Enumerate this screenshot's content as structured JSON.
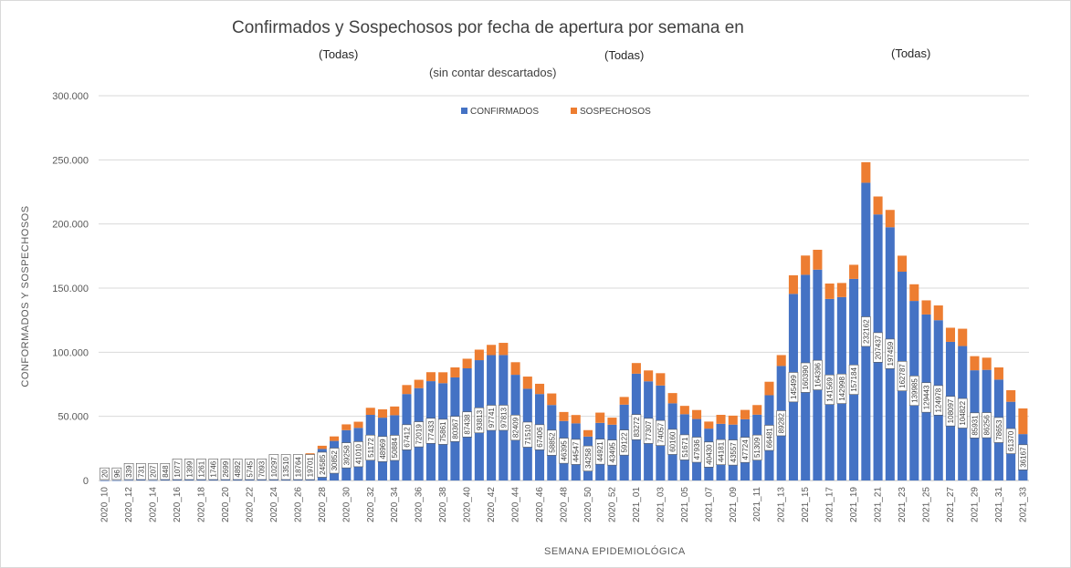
{
  "chart_data": {
    "type": "bar",
    "stacked": true,
    "title": "Confirmados y Sospechosos por fecha de apertura por semana en",
    "filters": [
      "(Todas)",
      "(Todas)",
      "(Todas)"
    ],
    "subtitle": "(sin contar descartados)",
    "ylabel": "CONFORMADOS Y SOSPECHOSOS",
    "xlabel": "SEMANA EPIDEMIOLÓGICA",
    "ylim": [
      0,
      300000
    ],
    "yticks": [
      "0",
      "50.000",
      "100.000",
      "150.000",
      "200.000",
      "250.000",
      "300.000"
    ],
    "grid": true,
    "legend_position": "top",
    "colors": {
      "confirmados": "#4472c4",
      "sospechosos": "#ed7d31"
    },
    "series_names": [
      "CONFIRMADOS",
      "SOSPECHOSOS"
    ],
    "categories": [
      "2020_10",
      "2020_11",
      "2020_12",
      "2020_13",
      "2020_14",
      "2020_15",
      "2020_16",
      "2020_17",
      "2020_18",
      "2020_19",
      "2020_20",
      "2020_21",
      "2020_22",
      "2020_23",
      "2020_24",
      "2020_25",
      "2020_26",
      "2020_27",
      "2020_28",
      "2020_29",
      "2020_30",
      "2020_31",
      "2020_32",
      "2020_33",
      "2020_34",
      "2020_35",
      "2020_36",
      "2020_37",
      "2020_38",
      "2020_39",
      "2020_40",
      "2020_41",
      "2020_42",
      "2020_43",
      "2020_44",
      "2020_45",
      "2020_46",
      "2020_47",
      "2020_48",
      "2020_49",
      "2020_50",
      "2020_51",
      "2020_52",
      "2020_53",
      "2021_01",
      "2021_02",
      "2021_03",
      "2021_04",
      "2021_05",
      "2021_06",
      "2021_07",
      "2021_08",
      "2021_09",
      "2021_10",
      "2021_11",
      "2021_12",
      "2021_13",
      "2021_14",
      "2021_15",
      "2021_16",
      "2021_17",
      "2021_18",
      "2021_19",
      "2021_20",
      "2021_21",
      "2021_22",
      "2021_23",
      "2021_24",
      "2021_25",
      "2021_26",
      "2021_27",
      "2021_28",
      "2021_29",
      "2021_30",
      "2021_31",
      "2021_32",
      "2021_33"
    ],
    "xtick_labels": [
      "2020_10",
      "2020_12",
      "2020_14",
      "2020_16",
      "2020_18",
      "2020_20",
      "2020_22",
      "2020_24",
      "2020_26",
      "2020_28",
      "2020_30",
      "2020_32",
      "2020_34",
      "2020_36",
      "2020_38",
      "2020_40",
      "2020_42",
      "2020_44",
      "2020_46",
      "2020_48",
      "2020_50",
      "2020_52",
      "2021_01",
      "2021_03",
      "2021_05",
      "2021_07",
      "2021_09",
      "2021_11",
      "2021_13",
      "2021_15",
      "2021_17",
      "2021_19",
      "2021_21",
      "2021_23",
      "2021_25",
      "2021_27",
      "2021_29",
      "2021_31",
      "2021_33"
    ],
    "confirmados": [
      20,
      96,
      339,
      731,
      207,
      848,
      1077,
      1399,
      1261,
      1746,
      2699,
      4892,
      5745,
      7093,
      10297,
      13510,
      18764,
      19701,
      24585,
      30852,
      39258,
      41010,
      51172,
      48969,
      50884,
      67412,
      72019,
      77433,
      75861,
      80367,
      87438,
      93813,
      97741,
      97813,
      82409,
      71510,
      67406,
      58852,
      46395,
      44547,
      34258,
      44921,
      43495,
      59122,
      83272,
      77307,
      74057,
      60160,
      51671,
      47936,
      40430,
      44181,
      43557,
      47724,
      51309,
      66481,
      89282,
      145499,
      160390,
      164396,
      141569,
      142998,
      157184,
      232162,
      207437,
      197459,
      162787,
      139985,
      129443,
      124978,
      108097,
      104822,
      85931,
      86256,
      78653,
      61370,
      36167
    ],
    "sospechosos": [
      0,
      0,
      0,
      0,
      0,
      0,
      0,
      0,
      0,
      0,
      0,
      0,
      0,
      0,
      0,
      500,
      1000,
      1500,
      2500,
      3500,
      4500,
      4800,
      5500,
      6500,
      6800,
      7000,
      6500,
      7000,
      8500,
      7800,
      7500,
      8200,
      8000,
      9500,
      9800,
      9500,
      8000,
      9000,
      7000,
      6500,
      5000,
      8000,
      5500,
      6000,
      8300,
      8500,
      9600,
      8000,
      6500,
      7000,
      5500,
      7000,
      7000,
      7300,
      7500,
      10500,
      8500,
      14500,
      15000,
      15500,
      12000,
      11000,
      11000,
      16000,
      14000,
      13500,
      12500,
      13000,
      11000,
      11500,
      11000,
      13500,
      11000,
      9500,
      9500,
      9000,
      20000
    ]
  }
}
